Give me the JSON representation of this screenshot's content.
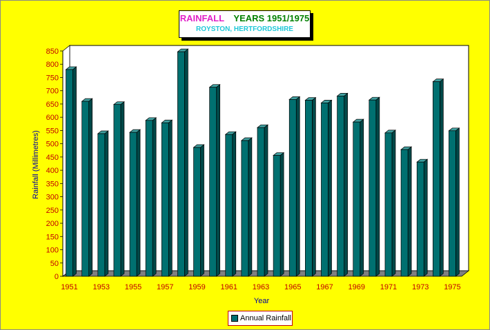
{
  "chart_data": {
    "type": "bar",
    "title_part1": "RAINFALL",
    "title_part2": "YEARS 1951/1975",
    "subtitle": "ROYSTON, HERTFORDSHIRE",
    "xlabel": "Year",
    "ylabel": "Rainfall (Millimetres)",
    "ylim": [
      0,
      850
    ],
    "ytick_step": 50,
    "categories": [
      "1951",
      "1952",
      "1953",
      "1954",
      "1955",
      "1956",
      "1957",
      "1958",
      "1959",
      "1960",
      "1961",
      "1962",
      "1963",
      "1964",
      "1965",
      "1966",
      "1967",
      "1968",
      "1969",
      "1970",
      "1971",
      "1972",
      "1973",
      "1974",
      "1975"
    ],
    "x_tick_labels": [
      "1951",
      "",
      "1953",
      "",
      "1955",
      "",
      "1957",
      "",
      "1959",
      "",
      "1961",
      "",
      "1963",
      "",
      "1965",
      "",
      "1967",
      "",
      "1969",
      "",
      "1971",
      "",
      "1973",
      "",
      "1975"
    ],
    "series": [
      {
        "name": "Annual Rainfall",
        "values": [
          780,
          660,
          538,
          648,
          543,
          588,
          579,
          847,
          486,
          713,
          535,
          512,
          561,
          456,
          667,
          664,
          654,
          680,
          582,
          665,
          541,
          478,
          431,
          734,
          549
        ]
      }
    ],
    "grid": true,
    "legend": "bottom-center",
    "colors": {
      "bar_front": "#007070",
      "bar_side": "#004848",
      "bar_top": "#40a0a0",
      "title_pink": "#e020c8",
      "title_green": "#008000",
      "subtitle_cyan": "#20c8d8",
      "tick_text": "#c00000",
      "axis_label": "#0000a0"
    }
  }
}
